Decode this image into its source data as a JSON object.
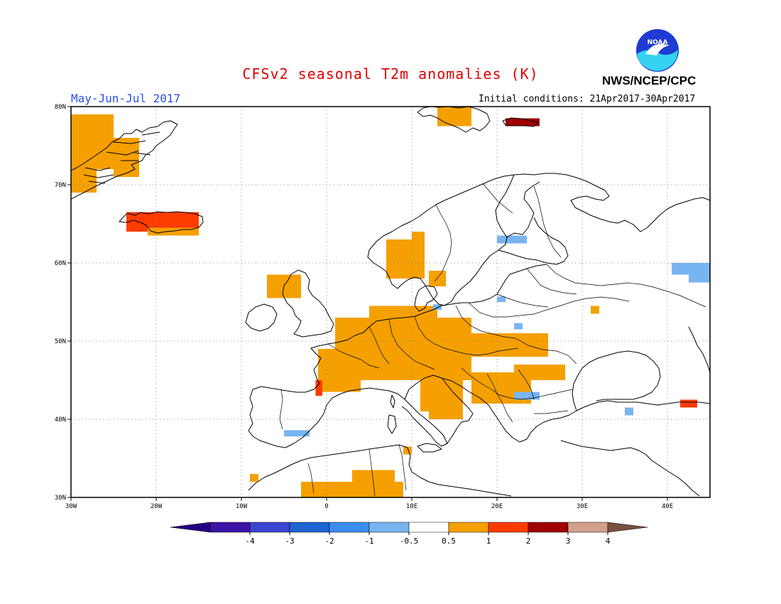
{
  "header": {
    "title": "CFSv2 seasonal T2m anomalies (K)",
    "agency": "NWS/NCEP/CPC",
    "season": "May-Jun-Jul 2017",
    "initial_conditions": "Initial conditions: 21Apr2017-30Apr2017",
    "logo_text": "NOAA"
  },
  "map": {
    "region": "Europe",
    "lon_range": [
      -30,
      45
    ],
    "lat_range": [
      30,
      80
    ],
    "lat_ticks": [
      {
        "lat": 80,
        "label": "80N"
      },
      {
        "lat": 70,
        "label": "70N"
      },
      {
        "lat": 60,
        "label": "60N"
      },
      {
        "lat": 50,
        "label": "50N"
      },
      {
        "lat": 40,
        "label": "40N"
      },
      {
        "lat": 30,
        "label": "30N"
      }
    ],
    "lon_ticks": [
      {
        "lon": -30,
        "label": "30W"
      },
      {
        "lon": -20,
        "label": "20W"
      },
      {
        "lon": -10,
        "label": "10W"
      },
      {
        "lon": 0,
        "label": "0"
      },
      {
        "lon": 10,
        "label": "10E"
      },
      {
        "lon": 20,
        "label": "20E"
      },
      {
        "lon": 30,
        "label": "30E"
      },
      {
        "lon": 40,
        "label": "40E"
      }
    ],
    "grid_on": true
  },
  "colorbar": {
    "labels": [
      "-4",
      "-3",
      "-2",
      "-1",
      "-0.5",
      "0.5",
      "1",
      "2",
      "3",
      "4"
    ],
    "colors": [
      "#3c14a8",
      "#3a46d2",
      "#1e64d2",
      "#3c8cf0",
      "#78b4f0",
      "#ffffff",
      "#f5a000",
      "#ff3c00",
      "#a00000",
      "#d2a08c"
    ],
    "under_color": "#240080",
    "over_color": "#785040"
  },
  "anomalies": [
    {
      "lon": [
        -30,
        -25
      ],
      "lat": [
        72,
        79
      ],
      "cls": "0.5-1"
    },
    {
      "lon": [
        -25,
        -22
      ],
      "lat": [
        71,
        76
      ],
      "cls": "0.5-1"
    },
    {
      "lon": [
        -30,
        -27
      ],
      "lat": [
        69,
        72
      ],
      "cls": "0.5-1"
    },
    {
      "lon": [
        -23.5,
        -15
      ],
      "lat": [
        64,
        66.5
      ],
      "cls": "1-2"
    },
    {
      "lon": [
        -21,
        -15
      ],
      "lat": [
        63.5,
        64.5
      ],
      "cls": "0.5-1"
    },
    {
      "lon": [
        13,
        17
      ],
      "lat": [
        77.5,
        80
      ],
      "cls": "0.5-1"
    },
    {
      "lon": [
        21,
        25
      ],
      "lat": [
        77.5,
        78.5
      ],
      "cls": "2-3"
    },
    {
      "lon": [
        7,
        10
      ],
      "lat": [
        58,
        63
      ],
      "cls": "0.5-1"
    },
    {
      "lon": [
        10,
        11.5
      ],
      "lat": [
        58,
        64
      ],
      "cls": "0.5-1"
    },
    {
      "lon": [
        12,
        14
      ],
      "lat": [
        57,
        59
      ],
      "cls": "0.5-1"
    },
    {
      "lon": [
        -7,
        -3
      ],
      "lat": [
        55.5,
        58.5
      ],
      "cls": "0.5-1"
    },
    {
      "lon": [
        1,
        17
      ],
      "lat": [
        45,
        53
      ],
      "cls": "0.5-1"
    },
    {
      "lon": [
        5,
        13
      ],
      "lat": [
        53,
        54.5
      ],
      "cls": "0.5-1"
    },
    {
      "lon": [
        -1,
        4
      ],
      "lat": [
        43.5,
        49
      ],
      "cls": "0.5-1"
    },
    {
      "lon": [
        13,
        26
      ],
      "lat": [
        48,
        51
      ],
      "cls": "0.5-1"
    },
    {
      "lon": [
        17,
        24
      ],
      "lat": [
        42,
        46
      ],
      "cls": "0.5-1"
    },
    {
      "lon": [
        22,
        28
      ],
      "lat": [
        45,
        47
      ],
      "cls": "0.5-1"
    },
    {
      "lon": [
        11,
        16
      ],
      "lat": [
        41,
        45
      ],
      "cls": "0.5-1"
    },
    {
      "lon": [
        12,
        16
      ],
      "lat": [
        40,
        41
      ],
      "cls": "0.5-1"
    },
    {
      "lon": [
        -3,
        9
      ],
      "lat": [
        30,
        32
      ],
      "cls": "0.5-1"
    },
    {
      "lon": [
        3,
        8
      ],
      "lat": [
        32,
        33.5
      ],
      "cls": "0.5-1"
    },
    {
      "lon": [
        9,
        10
      ],
      "lat": [
        35.5,
        36.5
      ],
      "cls": "0.5-1"
    },
    {
      "lon": [
        -9,
        -8
      ],
      "lat": [
        32,
        33
      ],
      "cls": "0.5-1"
    },
    {
      "lon": [
        31,
        32
      ],
      "lat": [
        53.5,
        54.5
      ],
      "cls": "0.5-1"
    },
    {
      "lon": [
        -1.3,
        -0.5
      ],
      "lat": [
        43,
        45
      ],
      "cls": "1-2"
    },
    {
      "lon": [
        41.5,
        43.5
      ],
      "lat": [
        41.5,
        42.5
      ],
      "cls": "1-2"
    },
    {
      "lon": [
        20,
        23.5
      ],
      "lat": [
        62.5,
        63.5
      ],
      "cls": "-1--0.5"
    },
    {
      "lon": [
        40.5,
        45
      ],
      "lat": [
        58.5,
        60
      ],
      "cls": "-1--0.5"
    },
    {
      "lon": [
        42.5,
        45
      ],
      "lat": [
        57.5,
        59
      ],
      "cls": "-1--0.5"
    },
    {
      "lon": [
        22,
        25
      ],
      "lat": [
        42.5,
        43.5
      ],
      "cls": "-1--0.5"
    },
    {
      "lon": [
        -5,
        -2
      ],
      "lat": [
        37.8,
        38.6
      ],
      "cls": "-1--0.5"
    },
    {
      "lon": [
        35,
        36
      ],
      "lat": [
        40.5,
        41.5
      ],
      "cls": "-1--0.5"
    },
    {
      "lon": [
        12.5,
        13.5
      ],
      "lat": [
        54,
        54.7
      ],
      "cls": "-1--0.5"
    },
    {
      "lon": [
        20,
        21
      ],
      "lat": [
        55,
        55.7
      ],
      "cls": "-1--0.5"
    },
    {
      "lon": [
        22,
        23
      ],
      "lat": [
        51.5,
        52.3
      ],
      "cls": "-1--0.5"
    }
  ]
}
